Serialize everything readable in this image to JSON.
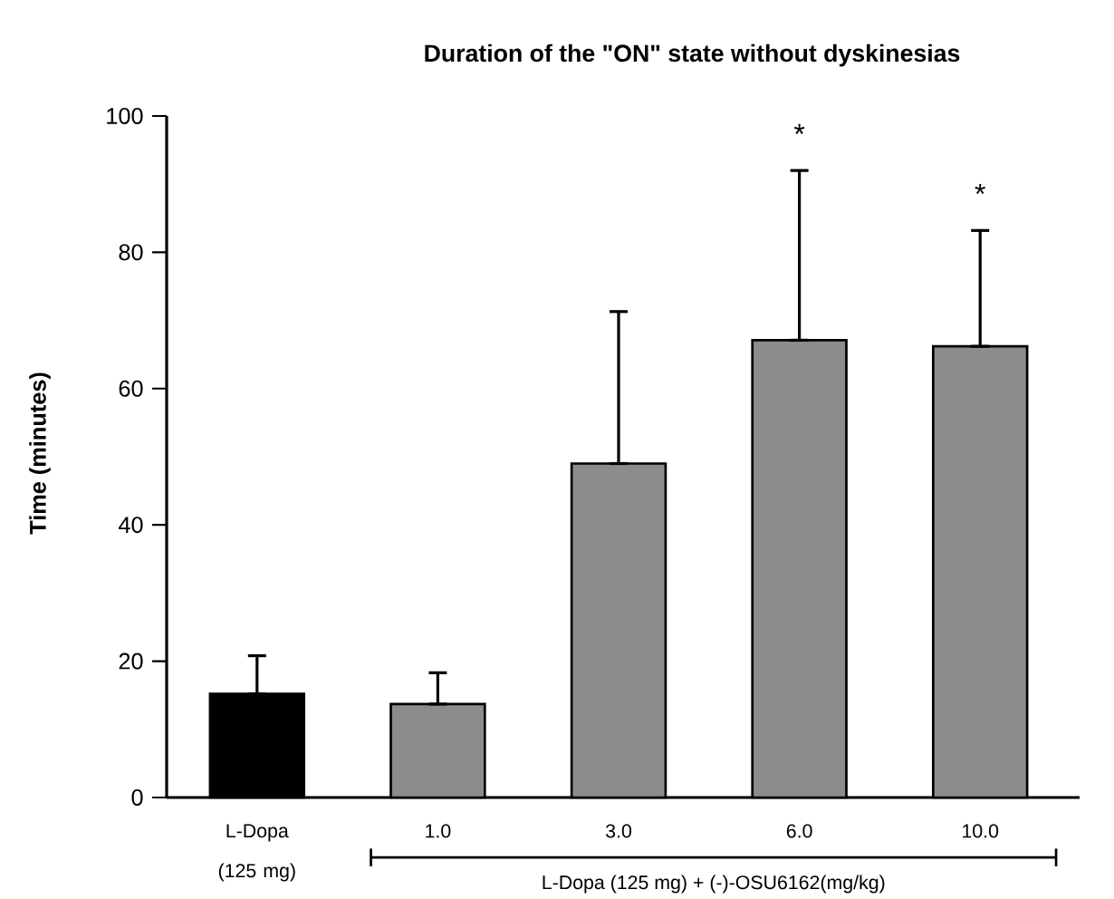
{
  "chart_data": {
    "type": "bar",
    "title": "Duration of the \"ON\" state without dyskinesias",
    "ylabel": "Time (minutes)",
    "categories": [
      "L-Dopa (125 mg)",
      "1.0",
      "3.0",
      "6.0",
      "10.0"
    ],
    "values": [
      15.2,
      13.7,
      49.0,
      67.1,
      66.2
    ],
    "colors": [
      "#000000",
      "#8c8c8c",
      "#8c8c8c",
      "#8c8c8c",
      "#8c8c8c"
    ],
    "errors": [
      [
        15.2,
        20.8
      ],
      [
        13.7,
        18.3
      ],
      [
        49.0,
        71.3
      ],
      [
        67.1,
        92.0
      ],
      [
        66.2,
        83.2
      ]
    ],
    "ylim": [
      0,
      100
    ],
    "yticks": [
      0,
      20,
      40,
      60,
      80,
      100
    ],
    "annotations": [
      {
        "text": "*",
        "x": "6.0",
        "y": 92.0
      },
      {
        "text": "*",
        "x": "10.0",
        "y": 83.2
      },
      "L-Dopa (125 mg) + (-)-OSU6162(mg/kg)"
    ]
  }
}
